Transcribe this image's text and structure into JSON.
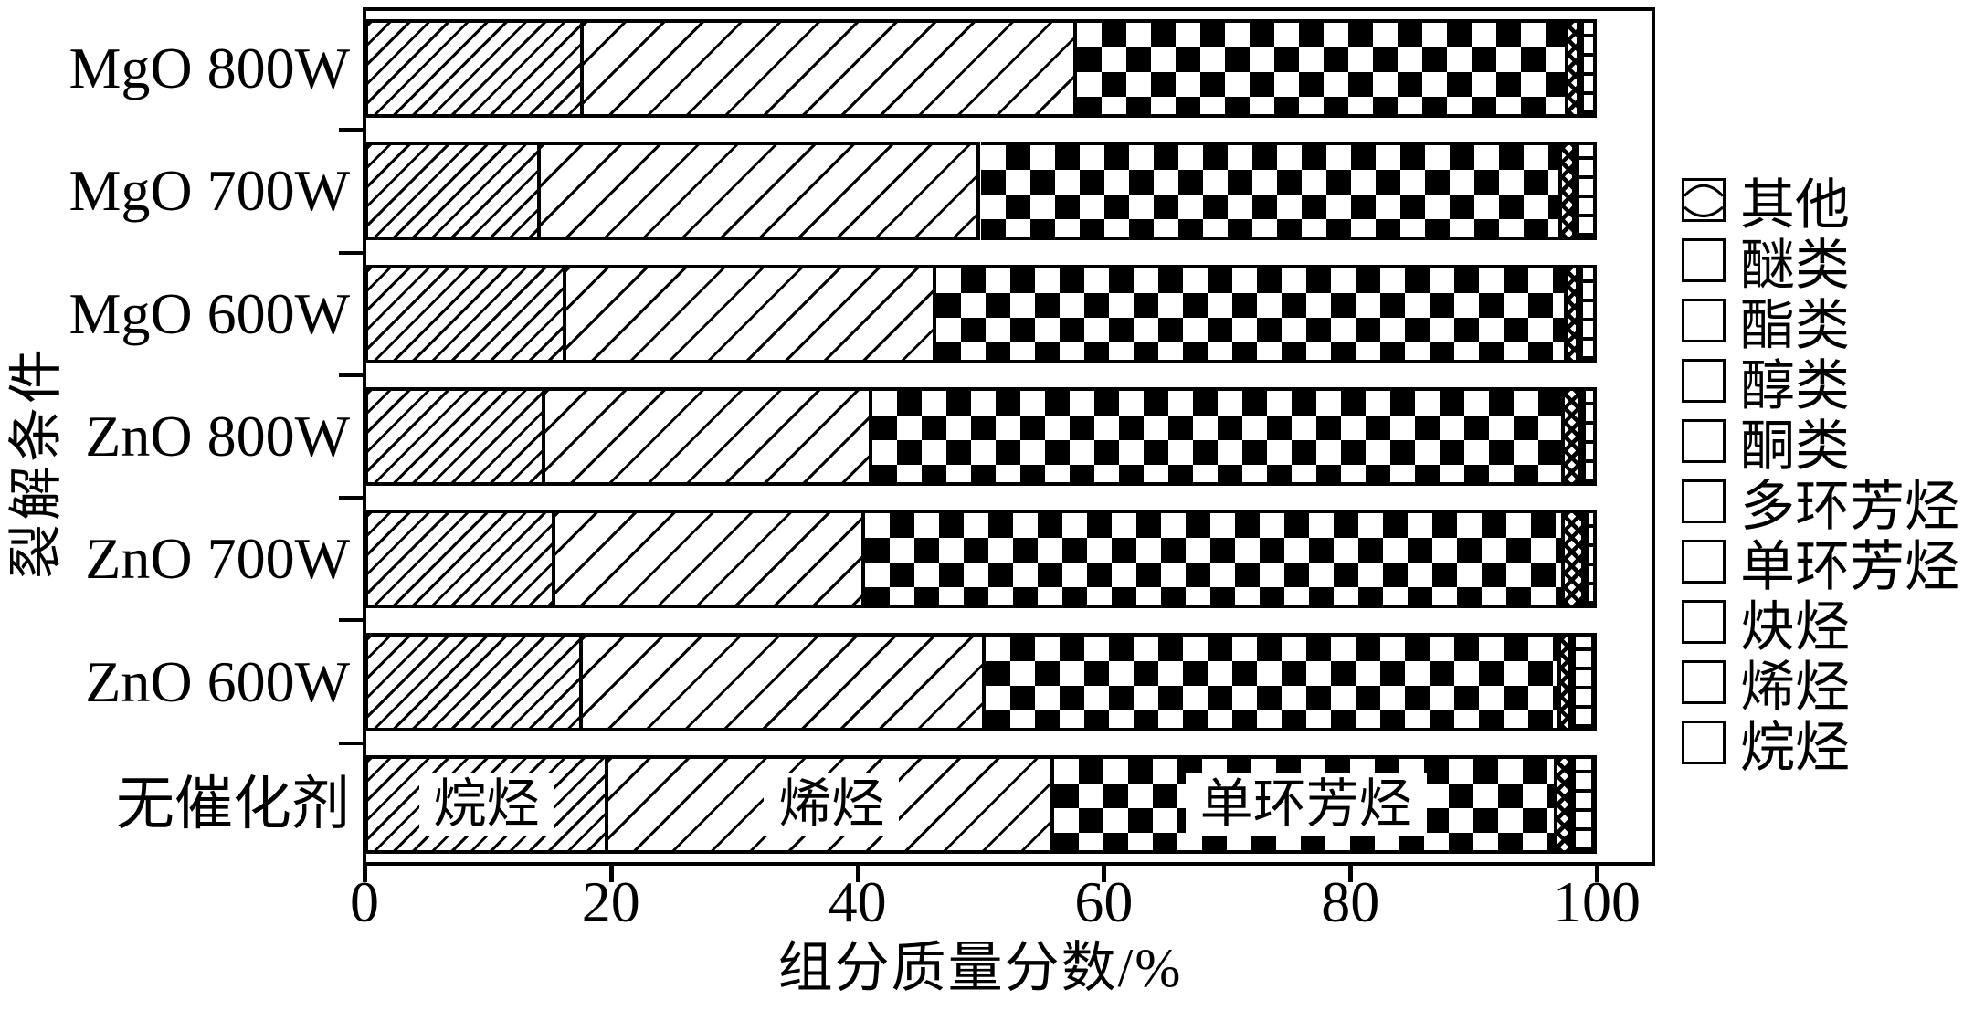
{
  "figure": {
    "background": "#ffffff",
    "ink": "#000000"
  },
  "axes": {
    "x": {
      "title": "组分质量分数/%",
      "ticks": [
        0,
        20,
        40,
        60,
        80,
        100
      ],
      "min": 0,
      "max": 100,
      "grid": false
    },
    "y": {
      "title": "裂解条件"
    }
  },
  "legend": {
    "position": "right",
    "items": [
      {
        "label": "其他",
        "pattern": "wave"
      },
      {
        "label": "醚类",
        "pattern": "dashes"
      },
      {
        "label": "酯类",
        "pattern": "diagcross"
      },
      {
        "label": "醇类",
        "pattern": "grid"
      },
      {
        "label": "酮类",
        "pattern": "dots"
      },
      {
        "label": "多环芳烃",
        "pattern": "mesh"
      },
      {
        "label": "单环芳烃",
        "pattern": "checker"
      },
      {
        "label": "炔烃",
        "pattern": "diag-sparse"
      },
      {
        "label": "烯烃",
        "pattern": "diag-back"
      },
      {
        "label": "烷烃",
        "pattern": "diag-dense"
      }
    ]
  },
  "chart_data": {
    "type": "bar",
    "orientation": "horizontal-stacked",
    "categories": [
      "MgO 800W",
      "MgO 700W",
      "MgO 600W",
      "ZnO 800W",
      "ZnO 700W",
      "ZnO 600W",
      "无催化剂"
    ],
    "series": [
      {
        "name": "烷烃",
        "pattern": "diag-dense",
        "values": [
          17.8,
          14.3,
          16.4,
          14.7,
          15.5,
          17.7,
          19.8
        ]
      },
      {
        "name": "烯烃",
        "pattern": "diag-sparse2",
        "values": [
          40.0,
          35.7,
          30.0,
          26.5,
          25.1,
          32.7,
          36.2
        ]
      },
      {
        "name": "单环芳烃",
        "pattern": "checker",
        "values": [
          39.9,
          47.2,
          51.2,
          56.2,
          56.8,
          46.7,
          40.8
        ]
      },
      {
        "name": "多环芳烃",
        "pattern": "mesh",
        "values": [
          1.0,
          1.1,
          1.0,
          1.4,
          1.6,
          0.9,
          1.2
        ]
      },
      {
        "name": "醇类",
        "pattern": "grid",
        "values": [
          1.3,
          1.7,
          1.4,
          1.2,
          1.0,
          2.0,
          2.0
        ]
      }
    ],
    "inner_labels": {
      "category": "无催化剂",
      "labels": [
        "烷烃",
        "烯烃",
        "单环芳烃"
      ]
    },
    "xlabel": "组分质量分数/%",
    "ylabel": "裂解条件",
    "xlim": [
      0,
      100
    ]
  }
}
